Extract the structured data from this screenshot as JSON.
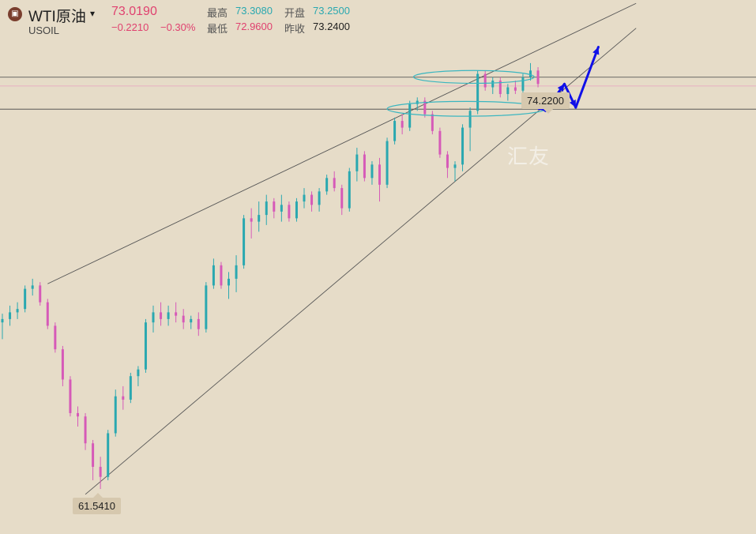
{
  "header": {
    "logo_glyph": "▣",
    "symbol_name": "WTI原油",
    "symbol_code": "USOIL",
    "caret": "▾",
    "last_price": "73.0190",
    "change": "−0.2210",
    "change_pct": "−0.30%",
    "high_label": "最高",
    "high_value": "73.3080",
    "low_label": "最低",
    "low_value": "72.9600",
    "open_label": "开盘",
    "open_value": "73.2500",
    "prev_label": "昨收",
    "prev_value": "73.2400"
  },
  "watermark": "汇友",
  "colors": {
    "up": "#2aa8b0",
    "down": "#d65ab8",
    "background": "#e6dcc8",
    "arrow": "#1010e8",
    "ellipse": "#3bb6c0"
  },
  "chart_data": {
    "type": "candlestick",
    "title": "",
    "ylim": [
      60.2,
      76.1
    ],
    "high_marker": "74.2200",
    "low_marker": "61.5410",
    "high_marker_value": 74.22,
    "low_marker_value": 61.541,
    "horizontal_levels": [
      73.8,
      73.54,
      72.85
    ],
    "channel": {
      "upper": [
        [
          6,
          67.65
        ],
        [
          84,
          76.0
        ]
      ],
      "lower": [
        [
          11,
          61.38
        ],
        [
          84,
          75.26
        ]
      ]
    },
    "ellipses": [
      {
        "center_index": 62.5,
        "center_value": 73.81,
        "width_bars": 16,
        "height": 0.19
      },
      {
        "center_index": 61.5,
        "center_value": 72.86,
        "width_bars": 21,
        "height": 0.22
      }
    ],
    "forecast_path": [
      [
        70,
        73.1
      ],
      [
        72,
        72.8
      ],
      [
        74.5,
        73.6
      ],
      [
        76,
        72.9
      ],
      [
        79,
        74.7
      ]
    ],
    "candles": [
      {
        "o": 66.5,
        "h": 66.76,
        "l": 66.0,
        "c": 66.6
      },
      {
        "o": 66.6,
        "h": 67.0,
        "l": 66.4,
        "c": 66.8
      },
      {
        "o": 66.8,
        "h": 67.1,
        "l": 66.6,
        "c": 66.9
      },
      {
        "o": 66.9,
        "h": 67.6,
        "l": 66.8,
        "c": 67.5
      },
      {
        "o": 67.5,
        "h": 67.8,
        "l": 67.3,
        "c": 67.6
      },
      {
        "o": 67.6,
        "h": 67.7,
        "l": 67.0,
        "c": 67.1
      },
      {
        "o": 67.1,
        "h": 67.2,
        "l": 66.3,
        "c": 66.4
      },
      {
        "o": 66.4,
        "h": 66.5,
        "l": 65.6,
        "c": 65.7
      },
      {
        "o": 65.7,
        "h": 65.8,
        "l": 64.6,
        "c": 64.8
      },
      {
        "o": 64.8,
        "h": 64.9,
        "l": 63.7,
        "c": 63.8
      },
      {
        "o": 63.8,
        "h": 64.0,
        "l": 63.4,
        "c": 63.7
      },
      {
        "o": 63.7,
        "h": 63.8,
        "l": 62.7,
        "c": 62.9
      },
      {
        "o": 62.9,
        "h": 63.0,
        "l": 61.8,
        "c": 62.2
      },
      {
        "o": 62.2,
        "h": 62.5,
        "l": 61.54,
        "c": 61.9
      },
      {
        "o": 61.9,
        "h": 63.3,
        "l": 61.8,
        "c": 63.2
      },
      {
        "o": 63.2,
        "h": 64.5,
        "l": 63.1,
        "c": 64.3
      },
      {
        "o": 64.3,
        "h": 64.6,
        "l": 63.9,
        "c": 64.2
      },
      {
        "o": 64.2,
        "h": 65.0,
        "l": 64.1,
        "c": 64.9
      },
      {
        "o": 64.9,
        "h": 65.2,
        "l": 64.6,
        "c": 65.1
      },
      {
        "o": 65.1,
        "h": 66.6,
        "l": 65.0,
        "c": 66.5
      },
      {
        "o": 66.5,
        "h": 67.0,
        "l": 66.2,
        "c": 66.8
      },
      {
        "o": 66.8,
        "h": 67.1,
        "l": 66.4,
        "c": 66.6
      },
      {
        "o": 66.6,
        "h": 67.0,
        "l": 66.4,
        "c": 66.8
      },
      {
        "o": 66.8,
        "h": 67.1,
        "l": 66.5,
        "c": 66.7
      },
      {
        "o": 66.7,
        "h": 66.9,
        "l": 66.3,
        "c": 66.5
      },
      {
        "o": 66.5,
        "h": 66.7,
        "l": 66.3,
        "c": 66.6
      },
      {
        "o": 66.6,
        "h": 66.8,
        "l": 66.1,
        "c": 66.3
      },
      {
        "o": 66.3,
        "h": 67.7,
        "l": 66.2,
        "c": 67.6
      },
      {
        "o": 67.6,
        "h": 68.4,
        "l": 67.5,
        "c": 68.2
      },
      {
        "o": 68.2,
        "h": 68.3,
        "l": 67.5,
        "c": 67.6
      },
      {
        "o": 67.6,
        "h": 68.0,
        "l": 67.2,
        "c": 67.8
      },
      {
        "o": 67.8,
        "h": 68.5,
        "l": 67.4,
        "c": 68.2
      },
      {
        "o": 68.2,
        "h": 69.7,
        "l": 68.1,
        "c": 69.6
      },
      {
        "o": 69.6,
        "h": 69.9,
        "l": 69.0,
        "c": 69.5
      },
      {
        "o": 69.5,
        "h": 70.1,
        "l": 69.2,
        "c": 69.7
      },
      {
        "o": 69.7,
        "h": 70.3,
        "l": 69.4,
        "c": 70.1
      },
      {
        "o": 70.1,
        "h": 70.2,
        "l": 69.6,
        "c": 69.8
      },
      {
        "o": 69.8,
        "h": 70.3,
        "l": 69.5,
        "c": 70.0
      },
      {
        "o": 70.0,
        "h": 70.1,
        "l": 69.5,
        "c": 69.6
      },
      {
        "o": 69.6,
        "h": 70.2,
        "l": 69.5,
        "c": 70.1
      },
      {
        "o": 70.1,
        "h": 70.5,
        "l": 69.9,
        "c": 70.3
      },
      {
        "o": 70.3,
        "h": 70.4,
        "l": 69.8,
        "c": 70.0
      },
      {
        "o": 70.0,
        "h": 70.5,
        "l": 69.8,
        "c": 70.4
      },
      {
        "o": 70.4,
        "h": 70.9,
        "l": 70.3,
        "c": 70.8
      },
      {
        "o": 70.8,
        "h": 71.0,
        "l": 70.4,
        "c": 70.5
      },
      {
        "o": 70.5,
        "h": 70.6,
        "l": 69.7,
        "c": 69.9
      },
      {
        "o": 69.9,
        "h": 71.1,
        "l": 69.8,
        "c": 71.0
      },
      {
        "o": 71.0,
        "h": 71.7,
        "l": 70.7,
        "c": 71.5
      },
      {
        "o": 71.5,
        "h": 71.6,
        "l": 70.7,
        "c": 70.8
      },
      {
        "o": 70.8,
        "h": 71.3,
        "l": 70.6,
        "c": 71.2
      },
      {
        "o": 71.2,
        "h": 71.4,
        "l": 70.1,
        "c": 70.6
      },
      {
        "o": 70.6,
        "h": 72.0,
        "l": 70.5,
        "c": 71.9
      },
      {
        "o": 71.9,
        "h": 72.6,
        "l": 71.8,
        "c": 72.5
      },
      {
        "o": 72.5,
        "h": 72.7,
        "l": 72.1,
        "c": 72.3
      },
      {
        "o": 72.3,
        "h": 73.1,
        "l": 72.2,
        "c": 73.0
      },
      {
        "o": 73.0,
        "h": 73.2,
        "l": 72.8,
        "c": 73.1
      },
      {
        "o": 73.1,
        "h": 73.2,
        "l": 72.6,
        "c": 72.7
      },
      {
        "o": 72.7,
        "h": 72.8,
        "l": 72.1,
        "c": 72.2
      },
      {
        "o": 72.2,
        "h": 72.3,
        "l": 71.4,
        "c": 71.5
      },
      {
        "o": 71.5,
        "h": 71.6,
        "l": 70.8,
        "c": 71.1
      },
      {
        "o": 71.1,
        "h": 71.3,
        "l": 70.7,
        "c": 71.2
      },
      {
        "o": 71.2,
        "h": 72.4,
        "l": 71.0,
        "c": 72.3
      },
      {
        "o": 72.3,
        "h": 72.9,
        "l": 71.6,
        "c": 72.8
      },
      {
        "o": 72.8,
        "h": 74.0,
        "l": 72.7,
        "c": 73.9
      },
      {
        "o": 73.9,
        "h": 74.0,
        "l": 73.4,
        "c": 73.5
      },
      {
        "o": 73.5,
        "h": 73.8,
        "l": 73.3,
        "c": 73.7
      },
      {
        "o": 73.7,
        "h": 73.8,
        "l": 73.2,
        "c": 73.3
      },
      {
        "o": 73.3,
        "h": 73.6,
        "l": 73.1,
        "c": 73.5
      },
      {
        "o": 73.5,
        "h": 73.7,
        "l": 73.3,
        "c": 73.4
      },
      {
        "o": 73.4,
        "h": 73.9,
        "l": 73.3,
        "c": 73.8
      },
      {
        "o": 73.8,
        "h": 74.22,
        "l": 73.7,
        "c": 74.0
      },
      {
        "o": 74.0,
        "h": 74.1,
        "l": 73.5,
        "c": 73.6
      }
    ]
  }
}
